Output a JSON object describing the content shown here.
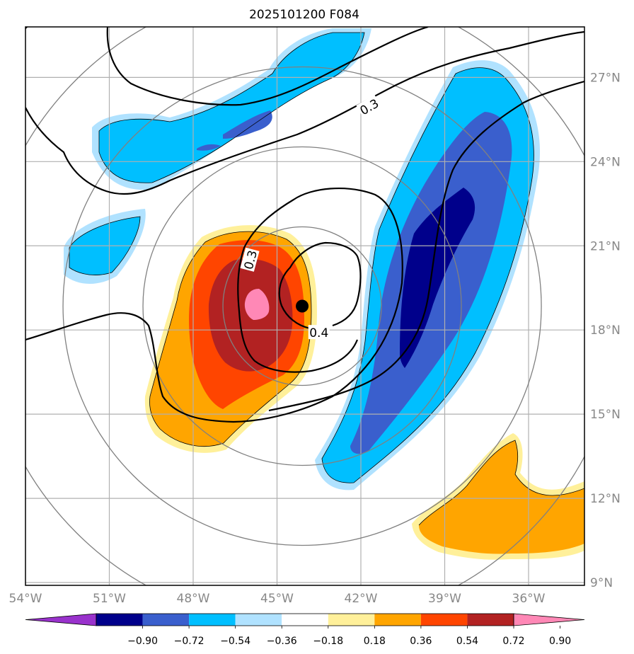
{
  "chart_data": {
    "type": "map-contour",
    "title": "2025101200 F084",
    "x_ticks": [
      {
        "value": -54,
        "label": "54°W"
      },
      {
        "value": -51,
        "label": "51°W"
      },
      {
        "value": -48,
        "label": "48°W"
      },
      {
        "value": -45,
        "label": "45°W"
      },
      {
        "value": -42,
        "label": "42°W"
      },
      {
        "value": -39,
        "label": "39°W"
      },
      {
        "value": -36,
        "label": "36°W"
      }
    ],
    "y_ticks": [
      {
        "value": 9,
        "label": "9°N"
      },
      {
        "value": 12,
        "label": "12°N"
      },
      {
        "value": 15,
        "label": "15°N"
      },
      {
        "value": 18,
        "label": "18°N"
      },
      {
        "value": 21,
        "label": "21°N"
      },
      {
        "value": 24,
        "label": "24°N"
      },
      {
        "value": 27,
        "label": "27°N"
      }
    ],
    "xlim": [
      -54,
      -34
    ],
    "ylim": [
      8.9,
      28.8
    ],
    "center": {
      "lon": -44.1,
      "lat": 18.85
    },
    "contour_labels": [
      {
        "text": "0.3",
        "lon": -41.7,
        "lat": 25.95,
        "rot": -30
      },
      {
        "text": "0.3",
        "lon": -45.95,
        "lat": 20.5,
        "rot": -75
      },
      {
        "text": "0.4",
        "lon": -43.5,
        "lat": 17.9,
        "rot": 0
      }
    ],
    "colorbar": {
      "colors": [
        "#9932cc",
        "#00008b",
        "#3a5fcd",
        "#00bfff",
        "#b0e2ff",
        "#ffffff",
        "#fff09a",
        "#ffa500",
        "#ff4500",
        "#b22222",
        "#ff88b6"
      ],
      "tick_labels": [
        "−0.90",
        "−0.72",
        "−0.54",
        "−0.36",
        "−0.18",
        "0.18",
        "0.36",
        "0.54",
        "0.72",
        "0.90"
      ],
      "extend": "both"
    }
  }
}
